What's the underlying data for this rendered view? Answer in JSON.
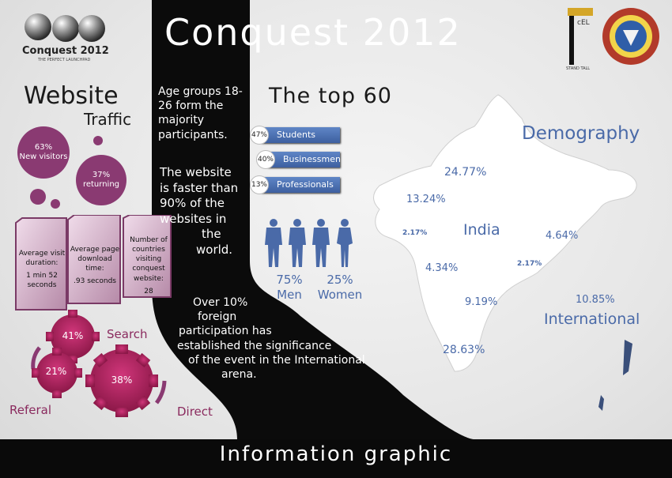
{
  "header": {
    "title": "Conquest 2012",
    "logo_text": "Conquest 2012",
    "logo_tagline": "THE PERFECT LAUNCHPAD",
    "cel_badge": "cEL",
    "cel_tagline": "STAND TALL"
  },
  "traffic": {
    "heading": "Website",
    "subheading": "Traffic",
    "new_visitors_pct": "63%",
    "new_visitors_label": "New visitors",
    "returning_pct": "37%",
    "returning_label": "returning",
    "boxes": [
      {
        "label": "Average visit duration:",
        "value": "1 min 52 seconds"
      },
      {
        "label": "Average page download time:",
        "value": ".93 seconds"
      },
      {
        "label": "Number of countries visiting conquest website:",
        "value": "28"
      }
    ]
  },
  "sources": {
    "search_label": "Search",
    "search_pct": "41%",
    "referal_label": "Referal",
    "referal_pct": "21%",
    "direct_label": "Direct",
    "direct_pct": "38%"
  },
  "center": {
    "age_text": "Age groups 18-26 form the majority participants.",
    "speed_text_lines": [
      "The website",
      "is faster than",
      "90% of the",
      "websites in",
      "the",
      "world."
    ],
    "foreign_lines": [
      "Over 10%",
      "foreign",
      "participation has",
      "established the  significance",
      "of the event in the International",
      "arena."
    ]
  },
  "top60": {
    "heading": "The top 60",
    "rows": [
      {
        "pct": "47%",
        "label": "Students"
      },
      {
        "pct": "40%",
        "label": "Businessmen"
      },
      {
        "pct": "13%",
        "label": "Professionals"
      }
    ],
    "men_pct": "75%",
    "men_label": "Men",
    "women_pct": "25%",
    "women_label": "Women"
  },
  "demography": {
    "heading": "Demography",
    "india_label": "India",
    "international_label": "International",
    "values": [
      "24.77%",
      "13.24%",
      "2.17%",
      "4.64%",
      "4.34%",
      "2.17%",
      "9.19%",
      "10.85%",
      "28.63%"
    ]
  },
  "footer": {
    "text": "Information graphic"
  },
  "colors": {
    "accent": "#8a3a72",
    "blue": "#4a6aa8",
    "dark": "#0a0a0a"
  }
}
